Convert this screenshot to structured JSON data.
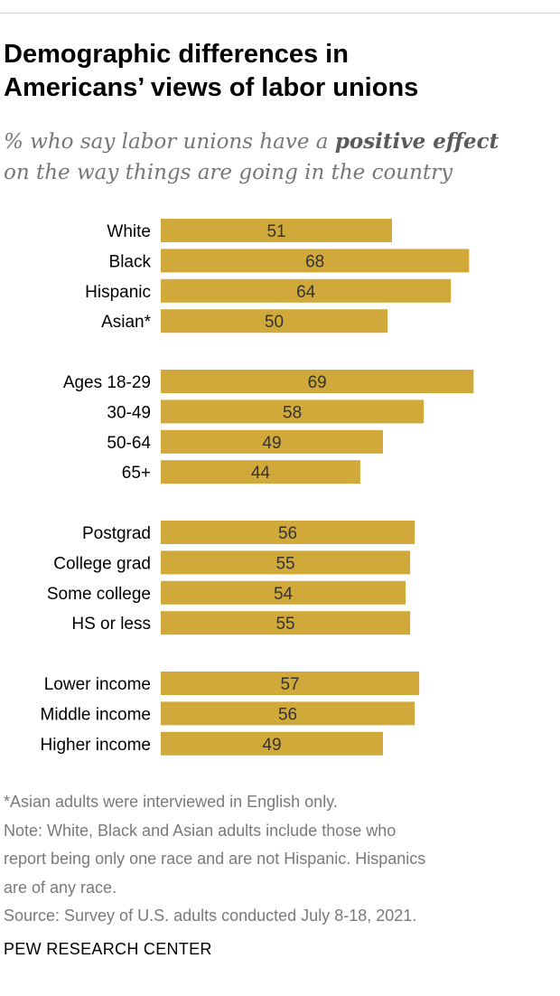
{
  "title_line1": "Demographic differences in",
  "title_line2": "Americans’ views of labor unions",
  "subtitle": {
    "part1": "% who say labor unions have a ",
    "emphasis": "positive effect",
    "part2": "on the way things are going in the country"
  },
  "chart_data": {
    "type": "bar",
    "orientation": "horizontal",
    "bar_color": "#D1A93A",
    "groups": [
      {
        "categories": [
          "White",
          "Black",
          "Hispanic",
          "Asian*"
        ],
        "values": [
          51,
          68,
          64,
          50
        ]
      },
      {
        "categories": [
          "Ages 18-29",
          "30-49",
          "50-64",
          "65+"
        ],
        "values": [
          69,
          58,
          49,
          44
        ]
      },
      {
        "categories": [
          "Postgrad",
          "College grad",
          "Some college",
          "HS or less"
        ],
        "values": [
          56,
          55,
          54,
          55
        ]
      },
      {
        "categories": [
          "Lower income",
          "Middle income",
          "Higher income"
        ],
        "values": [
          57,
          56,
          49
        ]
      }
    ]
  },
  "notes": [
    "*Asian adults were interviewed in English only.",
    "Note: White, Black and Asian adults include those who",
    "report being only one race and are not Hispanic. Hispanics",
    "are of any race.",
    "Source: Survey of U.S. adults conducted July 8-18, 2021."
  ],
  "brand": "PEW RESEARCH CENTER"
}
